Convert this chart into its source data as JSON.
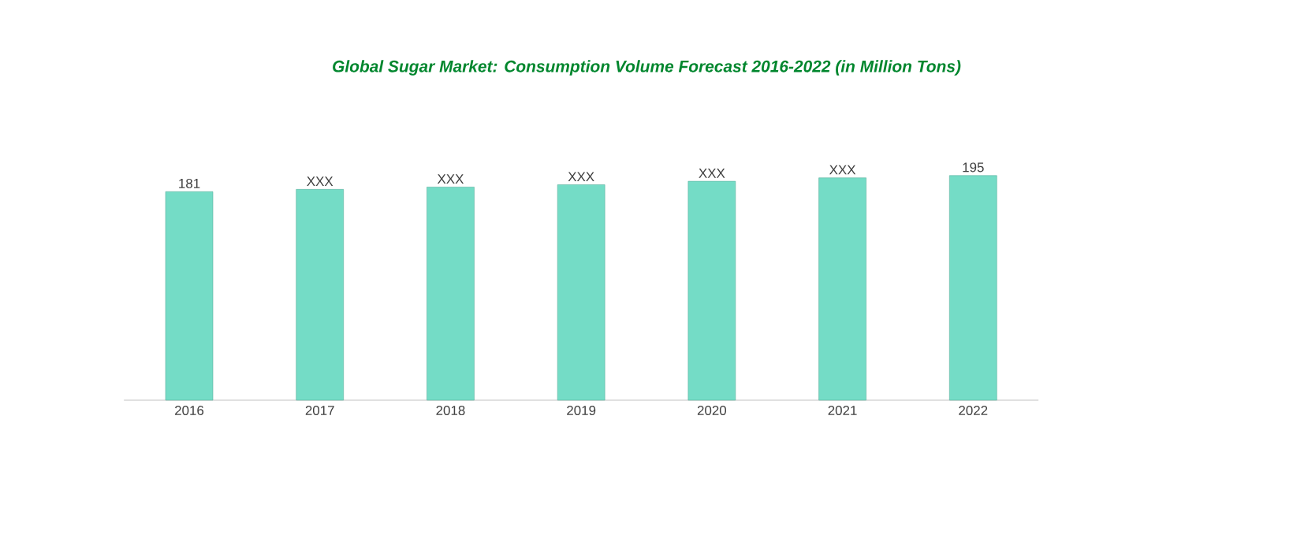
{
  "chart_data": {
    "type": "bar",
    "title": "Global Sugar Market: Consumption Volume Forecast 2016-2022 (in Million Tons)",
    "categories": [
      "2016",
      "2017",
      "2018",
      "2019",
      "2020",
      "2021",
      "2022"
    ],
    "values": [
      181,
      183,
      185,
      187,
      190,
      193,
      195
    ],
    "value_labels": [
      "181",
      "XXX",
      "XXX",
      "XXX",
      "XXX",
      "XXX",
      "195"
    ],
    "color": "#74dcc6",
    "tick_labels": "x"
  }
}
